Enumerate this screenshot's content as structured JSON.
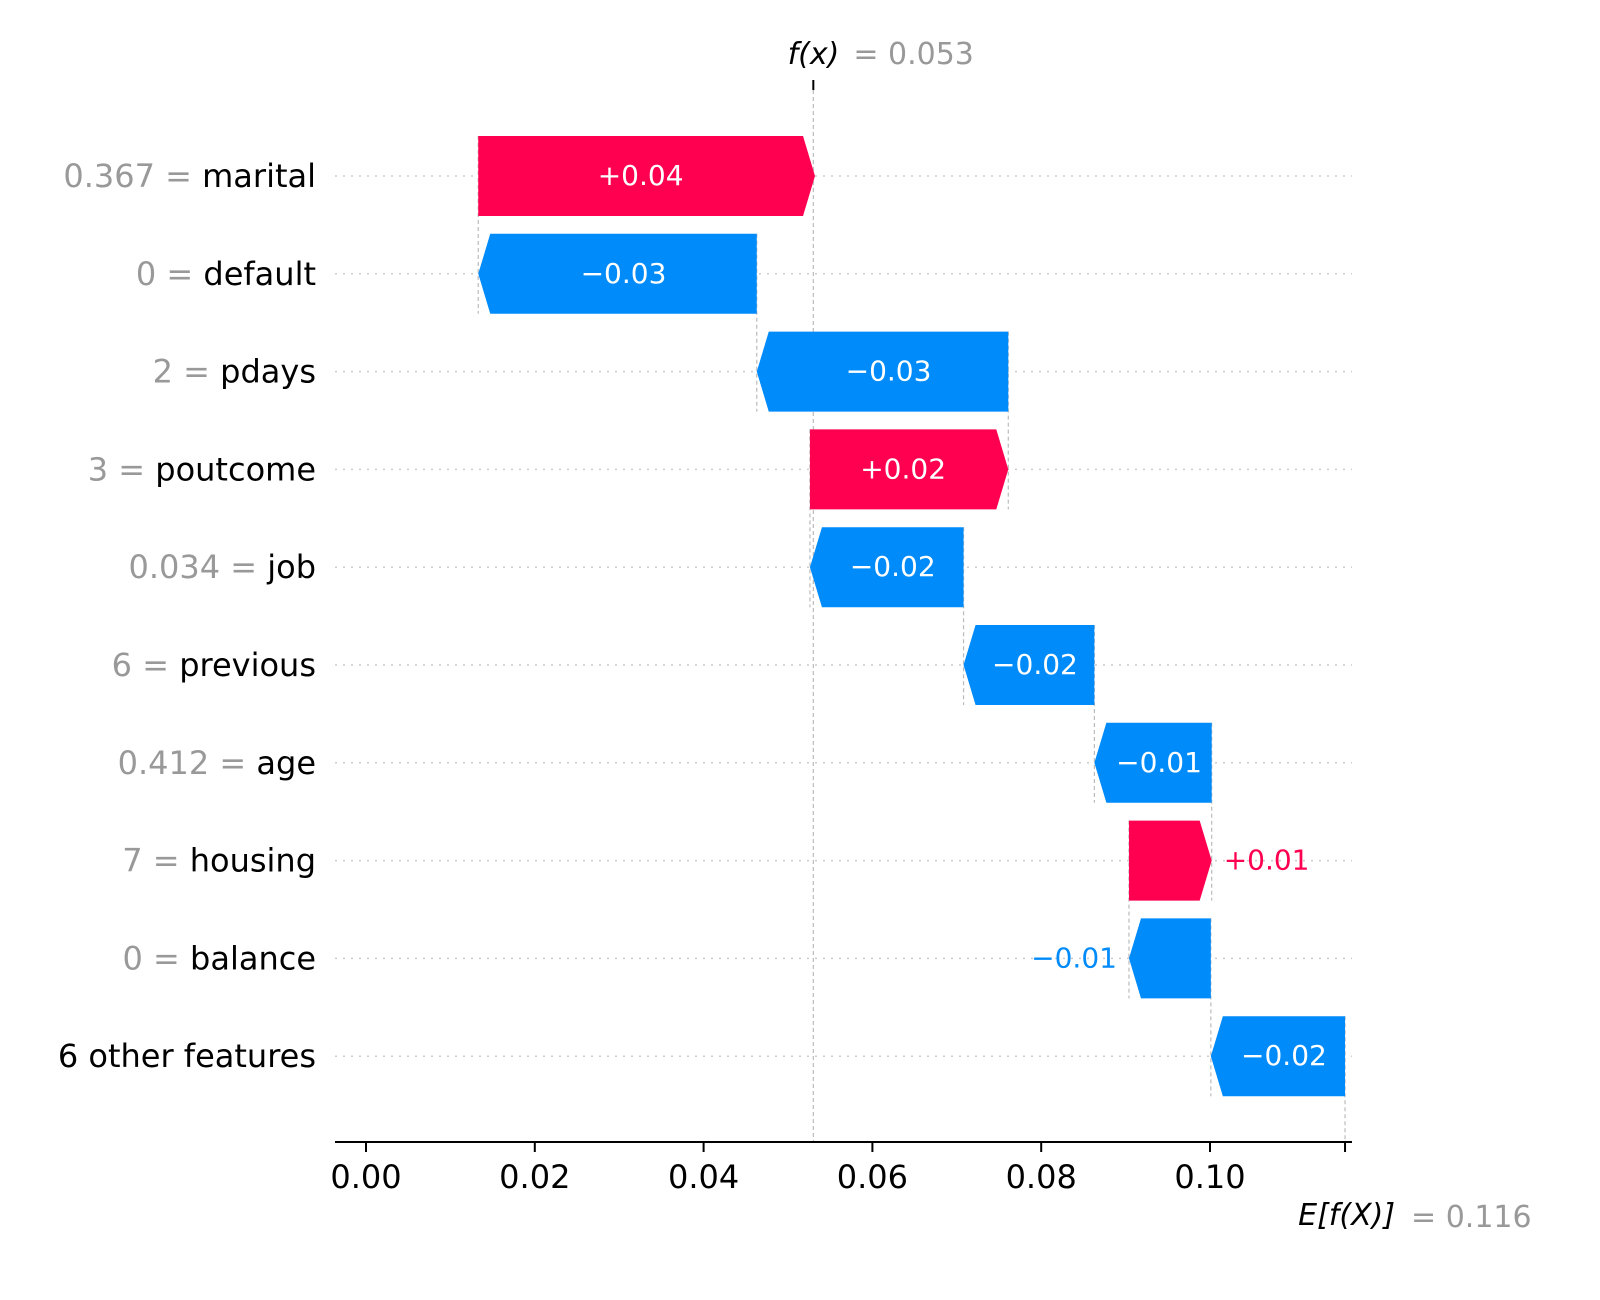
{
  "chart_data": {
    "type": "waterfall",
    "base_value": {
      "label_prefix": "E[f(X)]",
      "label_value": "= 0.116",
      "value": 0.116
    },
    "output_value": {
      "label_prefix": "f(x)",
      "label_value": "= 0.053",
      "value": 0.053
    },
    "xlim": [
      -0.002,
      0.117
    ],
    "xticks": [
      {
        "value": 0.0,
        "label": "0.00"
      },
      {
        "value": 0.02,
        "label": "0.02"
      },
      {
        "value": 0.04,
        "label": "0.04"
      },
      {
        "value": 0.06,
        "label": "0.06"
      },
      {
        "value": 0.08,
        "label": "0.08"
      },
      {
        "value": 0.1,
        "label": "0.10"
      }
    ],
    "colors": {
      "positive": "#ff0051",
      "negative": "#008bfb",
      "feature_value": "#999999",
      "text": "#000000"
    },
    "features": [
      {
        "value_text": "0.367 =",
        "name": "marital",
        "shap": 0.0399,
        "label": "+0.04"
      },
      {
        "value_text": "0 =",
        "name": "default",
        "shap": -0.033,
        "label": "−0.03"
      },
      {
        "value_text": "2 =",
        "name": "pdays",
        "shap": -0.0298,
        "label": "−0.03"
      },
      {
        "value_text": "3 =",
        "name": "poutcome",
        "shap": 0.0235,
        "label": "+0.02"
      },
      {
        "value_text": "0.034 =",
        "name": "job",
        "shap": -0.0182,
        "label": "−0.02"
      },
      {
        "value_text": "6 =",
        "name": "previous",
        "shap": -0.0155,
        "label": "−0.02"
      },
      {
        "value_text": "0.412 =",
        "name": "age",
        "shap": -0.0139,
        "label": "−0.01"
      },
      {
        "value_text": "7 =",
        "name": "housing",
        "shap": 0.0098,
        "label": "+0.01"
      },
      {
        "value_text": "0 =",
        "name": "balance",
        "shap": -0.0097,
        "label": "−0.01"
      },
      {
        "value_text": "",
        "name": "6 other features",
        "shap": -0.0159,
        "label": "−0.02"
      }
    ]
  }
}
